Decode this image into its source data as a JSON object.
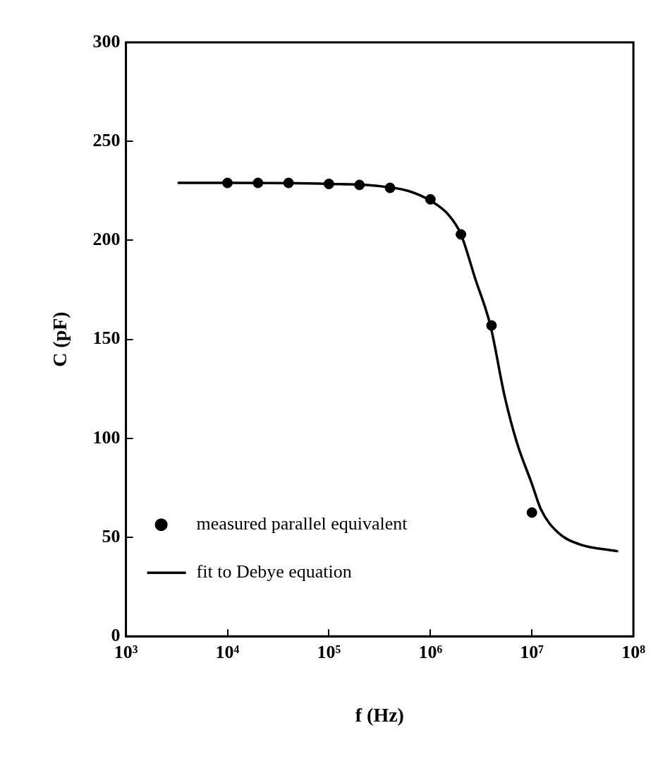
{
  "chart_data": {
    "type": "scatter",
    "xlabel": "f (Hz)",
    "ylabel": "C (pF)",
    "log": "x",
    "xlim": [
      1000,
      100000000
    ],
    "xticks": [
      {
        "value": 1000,
        "label": "10³"
      },
      {
        "value": 10000,
        "label": "10⁴"
      },
      {
        "value": 100000,
        "label": "10⁵"
      },
      {
        "value": 1000000,
        "label": "10⁶"
      },
      {
        "value": 10000000,
        "label": "10⁷"
      },
      {
        "value": 100000000,
        "label": "10⁸"
      }
    ],
    "ylim": [
      0,
      300
    ],
    "yticks": [
      0,
      50,
      100,
      150,
      200,
      250,
      300
    ],
    "grid": false,
    "legend": "bottom left",
    "marker": "circle",
    "series": [
      {
        "name": "measured parallel equivalent",
        "color": "#000000",
        "x": [
          10000,
          20000,
          40000,
          100000,
          200000,
          400000,
          1000000,
          2000000,
          4000000,
          10000000
        ],
        "values": [
          229,
          229,
          229,
          228.5,
          228,
          226.5,
          220.7,
          203,
          157,
          62.5
        ]
      },
      {
        "name": "fit to Debye equation",
        "type": "line",
        "marker": "none",
        "line_style": "solid",
        "color": "#000000",
        "x": [
          3300,
          10000,
          100000,
          300000,
          600000,
          1000000,
          1500000,
          2000000,
          2750000,
          3900000,
          5400000,
          7100000,
          10000000,
          12300000,
          18000000,
          29000000,
          69000000
        ],
        "values": [
          229,
          229,
          228.5,
          227.5,
          225,
          220,
          213,
          203,
          181,
          157,
          121,
          98,
          77,
          64,
          52.5,
          46.6,
          43
        ]
      }
    ]
  }
}
